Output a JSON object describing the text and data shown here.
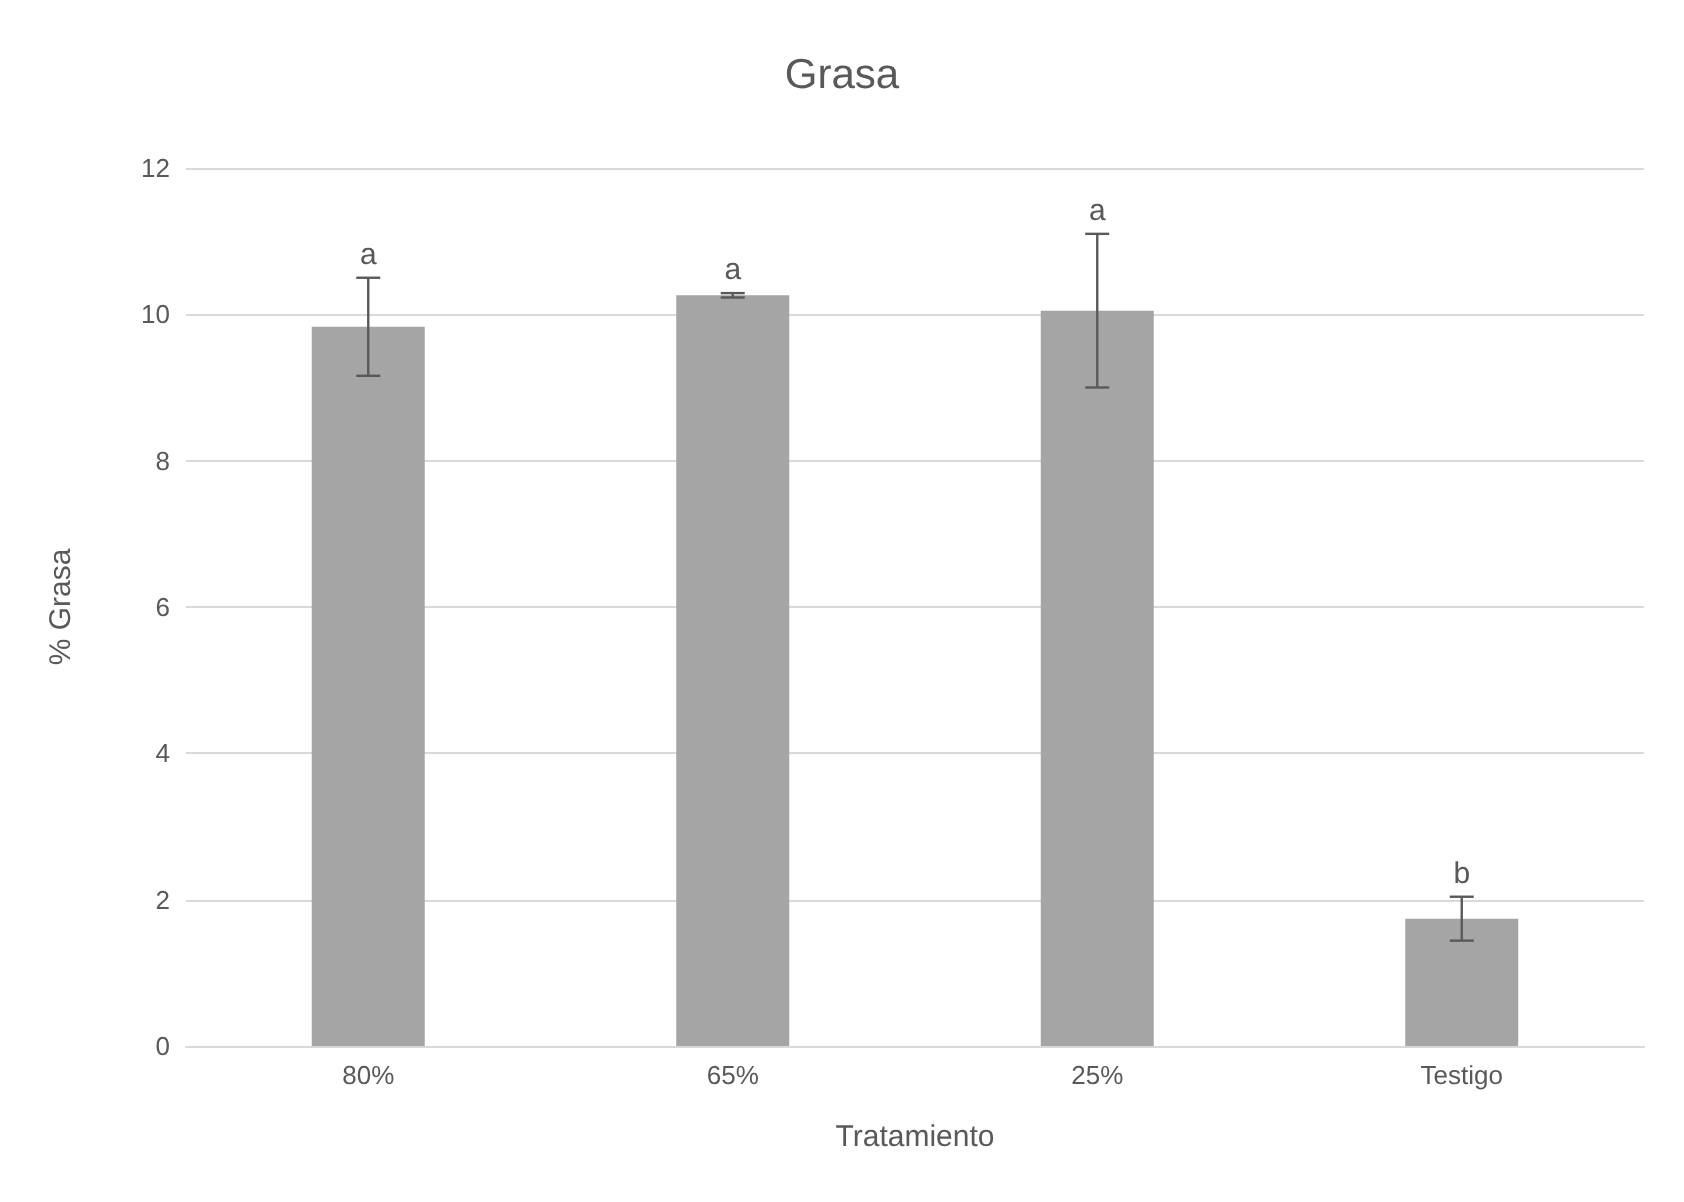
{
  "chart_data": {
    "type": "bar",
    "title": "Grasa",
    "xlabel": "Tratamiento",
    "ylabel": "% Grasa",
    "categories": [
      "80%",
      "65%",
      "25%",
      "Testigo"
    ],
    "values": [
      9.83,
      10.26,
      10.05,
      1.74
    ],
    "errors": [
      0.67,
      0.03,
      1.05,
      0.3
    ],
    "color": "#a5a5a5",
    "ylim": [
      0,
      12
    ],
    "yticks": [
      0,
      2,
      4,
      6,
      8,
      10,
      12
    ],
    "grid": "y",
    "annotations": [
      "a",
      "a",
      "a",
      "b"
    ]
  }
}
